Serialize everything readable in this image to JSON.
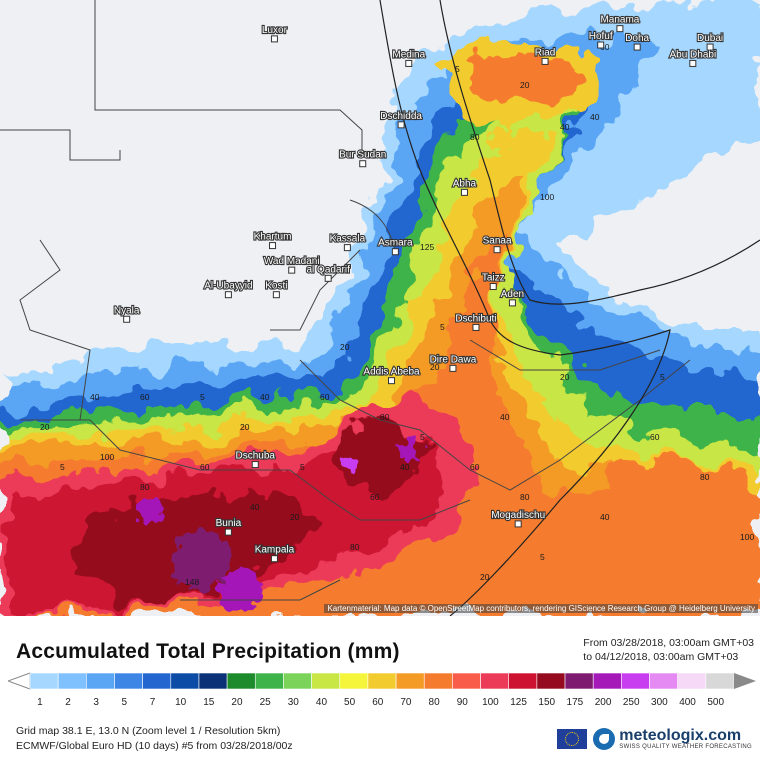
{
  "map": {
    "cities": [
      {
        "name": "Luxor",
        "lon": 32.6,
        "lat": 25.7
      },
      {
        "name": "Manama",
        "lon": 50.6,
        "lat": 26.2
      },
      {
        "name": "Doha",
        "lon": 51.5,
        "lat": 25.3
      },
      {
        "name": "Hofuf",
        "lon": 49.6,
        "lat": 25.4
      },
      {
        "name": "Abu Dhabi",
        "lon": 54.4,
        "lat": 24.5
      },
      {
        "name": "Riad",
        "lon": 46.7,
        "lat": 24.6
      },
      {
        "name": "Medina",
        "lon": 39.6,
        "lat": 24.5
      },
      {
        "name": "Dschidda",
        "lon": 39.2,
        "lat": 21.5
      },
      {
        "name": "Bur Sudan",
        "lon": 37.2,
        "lat": 19.6
      },
      {
        "name": "Abha",
        "lon": 42.5,
        "lat": 18.2
      },
      {
        "name": "Kassala",
        "lon": 36.4,
        "lat": 15.5
      },
      {
        "name": "Asmara",
        "lon": 38.9,
        "lat": 15.3
      },
      {
        "name": "Khartum",
        "lon": 32.5,
        "lat": 15.6
      },
      {
        "name": "Wad Madani",
        "lon": 33.5,
        "lat": 14.4
      },
      {
        "name": "al Qadarif",
        "lon": 35.4,
        "lat": 14.0
      },
      {
        "name": "Sanaa",
        "lon": 44.2,
        "lat": 15.4
      },
      {
        "name": "Taizz",
        "lon": 44.0,
        "lat": 13.6
      },
      {
        "name": "Aden",
        "lon": 45.0,
        "lat": 12.8
      },
      {
        "name": "Al-Ubayyid",
        "lon": 30.2,
        "lat": 13.2
      },
      {
        "name": "Kosti",
        "lon": 32.7,
        "lat": 13.2
      },
      {
        "name": "Nyala",
        "lon": 24.9,
        "lat": 12.0
      },
      {
        "name": "Dschibuti",
        "lon": 43.1,
        "lat": 11.6
      },
      {
        "name": "Dire Dawa",
        "lon": 41.9,
        "lat": 9.6
      },
      {
        "name": "Addis Abeba",
        "lon": 38.7,
        "lat": 9.0
      },
      {
        "name": "Dschuba",
        "lon": 31.6,
        "lat": 4.9
      },
      {
        "name": "Mogadischu",
        "lon": 45.3,
        "lat": 2.0
      },
      {
        "name": "Bunia",
        "lon": 30.2,
        "lat": 1.6
      },
      {
        "name": "Kampala",
        "lon": 32.6,
        "lat": 0.3
      },
      {
        "name": "Dubai",
        "lon": 55.3,
        "lat": 25.3
      }
    ],
    "value_labels": [
      "5",
      "20",
      "40",
      "60",
      "80",
      "100",
      "125",
      "5",
      "20",
      "40",
      "60",
      "80",
      "5",
      "20",
      "40",
      "60",
      "80",
      "100",
      "5",
      "20",
      "40",
      "60",
      "80",
      "5",
      "20",
      "40",
      "60",
      "80",
      "100",
      "5",
      "20",
      "40",
      "60",
      "5",
      "20",
      "40",
      "60",
      "80",
      "5",
      "20",
      "40",
      "148"
    ],
    "attribution": "Kartenmaterial: Map data © OpenStreetMap contributors, rendering GIScience Research Group @ Heidelberg University"
  },
  "legend": {
    "title": "Accumulated Total Precipitation (mm)",
    "period_from": "From 03/28/2018, 03:00am GMT+03",
    "period_to": "to 04/12/2018, 03:00am GMT+03",
    "scale_values": [
      "1",
      "2",
      "3",
      "5",
      "7",
      "10",
      "15",
      "20",
      "25",
      "30",
      "40",
      "50",
      "60",
      "70",
      "80",
      "90",
      "100",
      "125",
      "150",
      "175",
      "200",
      "250",
      "300",
      "400",
      "500"
    ],
    "scale_colors": [
      "#a6d8ff",
      "#7fc1ff",
      "#5aa6f5",
      "#3d86e6",
      "#2366cf",
      "#0d4ca6",
      "#0b3276",
      "#1d8a2b",
      "#3eb34a",
      "#7cd35a",
      "#c8e644",
      "#f5f53b",
      "#f2cb2f",
      "#f49b25",
      "#f57b2f",
      "#f95d4a",
      "#ec3a59",
      "#cc1230",
      "#950a1f",
      "#7e1a6f",
      "#a419b8",
      "#c93df0",
      "#e58af2",
      "#f6d9f7",
      "#d8d8d8"
    ]
  },
  "meta": {
    "line1": "Grid map 38.1 E, 13.0 N (Zoom level 1 / Resolution 5km)",
    "line2": "ECMWF/Global Euro HD (10 days) #5 from 03/28/2018/00z"
  },
  "brand": {
    "name": "meteologix.com",
    "tagline": "SWISS QUALITY WEATHER FORECASTING"
  }
}
